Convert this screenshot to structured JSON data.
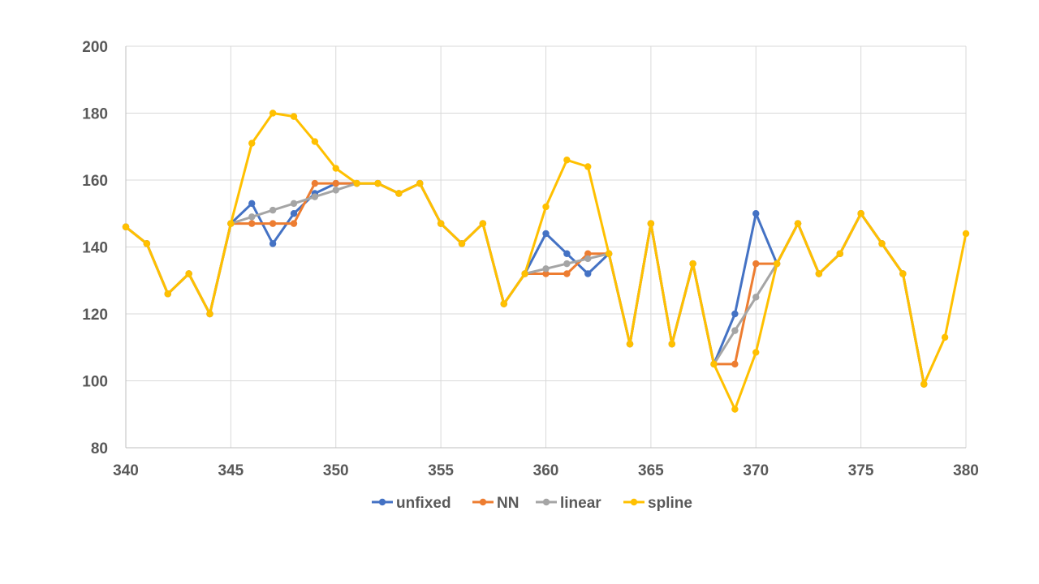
{
  "chart_data": {
    "type": "line",
    "title": "",
    "xlabel": "",
    "ylabel": "",
    "xlim": [
      340,
      380
    ],
    "ylim": [
      80,
      200
    ],
    "x_ticks": [
      340,
      345,
      350,
      355,
      360,
      365,
      370,
      375,
      380
    ],
    "y_ticks": [
      80,
      100,
      120,
      140,
      160,
      180,
      200
    ],
    "grid": true,
    "legend": "bottom",
    "series": [
      {
        "name": "unfixed",
        "color": "#4472C4",
        "points": [
          [
            340,
            146
          ],
          [
            341,
            141
          ],
          [
            342,
            126
          ],
          [
            343,
            132
          ],
          [
            344,
            120
          ],
          [
            345,
            147
          ],
          [
            346,
            153
          ],
          [
            347,
            141
          ],
          [
            348,
            150
          ],
          [
            349,
            156
          ],
          [
            350,
            159
          ],
          [
            351,
            159
          ],
          [
            352,
            159
          ],
          [
            353,
            156
          ],
          [
            354,
            159
          ],
          [
            355,
            147
          ],
          [
            356,
            141
          ],
          [
            357,
            147
          ],
          [
            358,
            123
          ],
          [
            359,
            132
          ],
          [
            360,
            144
          ],
          [
            361,
            138
          ],
          [
            362,
            132
          ],
          [
            363,
            138
          ],
          [
            364,
            111
          ],
          [
            365,
            147
          ],
          [
            366,
            111
          ],
          [
            367,
            135
          ],
          [
            368,
            105
          ],
          [
            369,
            120
          ],
          [
            370,
            150
          ],
          [
            371,
            135
          ],
          [
            372,
            147
          ],
          [
            373,
            132
          ],
          [
            374,
            138
          ],
          [
            375,
            150
          ],
          [
            376,
            141
          ],
          [
            377,
            132
          ],
          [
            378,
            99
          ]
        ]
      },
      {
        "name": "NN",
        "color": "#ED7D31",
        "points": [
          [
            340,
            146
          ],
          [
            341,
            141
          ],
          [
            342,
            126
          ],
          [
            343,
            132
          ],
          [
            344,
            120
          ],
          [
            345,
            147
          ],
          [
            346,
            147
          ],
          [
            347,
            147
          ],
          [
            348,
            147
          ],
          [
            349,
            159
          ],
          [
            350,
            159
          ],
          [
            351,
            159
          ],
          [
            352,
            159
          ],
          [
            353,
            156
          ],
          [
            354,
            159
          ],
          [
            355,
            147
          ],
          [
            356,
            141
          ],
          [
            357,
            147
          ],
          [
            358,
            123
          ],
          [
            359,
            132
          ],
          [
            360,
            132
          ],
          [
            361,
            132
          ],
          [
            362,
            138
          ],
          [
            363,
            138
          ],
          [
            364,
            111
          ],
          [
            365,
            147
          ],
          [
            366,
            111
          ],
          [
            367,
            135
          ],
          [
            368,
            105
          ],
          [
            369,
            105
          ],
          [
            370,
            135
          ],
          [
            371,
            135
          ],
          [
            372,
            147
          ],
          [
            373,
            132
          ],
          [
            374,
            138
          ],
          [
            375,
            150
          ],
          [
            376,
            141
          ],
          [
            377,
            132
          ],
          [
            378,
            99
          ]
        ]
      },
      {
        "name": "linear",
        "color": "#A5A5A5",
        "points": [
          [
            340,
            146
          ],
          [
            341,
            141
          ],
          [
            342,
            126
          ],
          [
            343,
            132
          ],
          [
            344,
            120
          ],
          [
            345,
            147
          ],
          [
            346,
            149
          ],
          [
            347,
            151
          ],
          [
            348,
            153
          ],
          [
            349,
            155
          ],
          [
            350,
            157
          ],
          [
            351,
            159
          ],
          [
            352,
            159
          ],
          [
            353,
            156
          ],
          [
            354,
            159
          ],
          [
            355,
            147
          ],
          [
            356,
            141
          ],
          [
            357,
            147
          ],
          [
            358,
            123
          ],
          [
            359,
            132
          ],
          [
            360,
            133.5
          ],
          [
            361,
            135
          ],
          [
            362,
            136.5
          ],
          [
            363,
            138
          ],
          [
            364,
            111
          ],
          [
            365,
            147
          ],
          [
            366,
            111
          ],
          [
            367,
            135
          ],
          [
            368,
            105
          ],
          [
            369,
            115
          ],
          [
            370,
            125
          ],
          [
            371,
            135
          ],
          [
            372,
            147
          ],
          [
            373,
            132
          ],
          [
            374,
            138
          ],
          [
            375,
            150
          ],
          [
            376,
            141
          ],
          [
            377,
            132
          ],
          [
            378,
            99
          ]
        ]
      },
      {
        "name": "spline",
        "color": "#FFC000",
        "points": [
          [
            340,
            146
          ],
          [
            341,
            141
          ],
          [
            342,
            126
          ],
          [
            343,
            132
          ],
          [
            344,
            120
          ],
          [
            345,
            147
          ],
          [
            346,
            171
          ],
          [
            347,
            180
          ],
          [
            348,
            179
          ],
          [
            349,
            171.5
          ],
          [
            350,
            163.5
          ],
          [
            351,
            159
          ],
          [
            352,
            159
          ],
          [
            353,
            156
          ],
          [
            354,
            159
          ],
          [
            355,
            147
          ],
          [
            356,
            141
          ],
          [
            357,
            147
          ],
          [
            358,
            123
          ],
          [
            359,
            132
          ],
          [
            360,
            152
          ],
          [
            361,
            166
          ],
          [
            362,
            164
          ],
          [
            363,
            138
          ],
          [
            364,
            111
          ],
          [
            365,
            147
          ],
          [
            366,
            111
          ],
          [
            367,
            135
          ],
          [
            368,
            105
          ],
          [
            369,
            91.5
          ],
          [
            370,
            108.5
          ],
          [
            371,
            135
          ],
          [
            372,
            147
          ],
          [
            373,
            132
          ],
          [
            374,
            138
          ],
          [
            375,
            150
          ],
          [
            376,
            141
          ],
          [
            377,
            132
          ],
          [
            378,
            99
          ],
          [
            379,
            113
          ],
          [
            380,
            144
          ]
        ]
      }
    ]
  }
}
